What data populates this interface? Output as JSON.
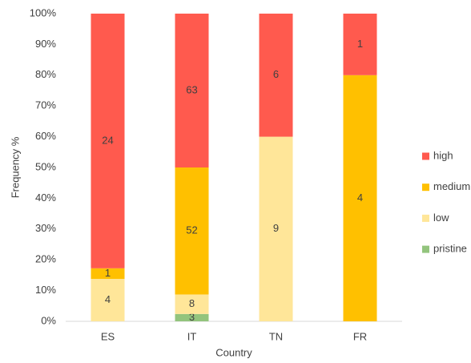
{
  "chart_data": {
    "type": "bar",
    "stacked": "percent",
    "x_label": "Country",
    "y_label": "Frequency %",
    "categories": [
      "ES",
      "IT",
      "TN",
      "FR"
    ],
    "series": [
      {
        "name": "pristine",
        "color": "#93c47d",
        "values": [
          null,
          3,
          null,
          null
        ]
      },
      {
        "name": "low",
        "color": "#ffe699",
        "values": [
          4,
          8,
          9,
          null
        ]
      },
      {
        "name": "medium",
        "color": "#ffc000",
        "values": [
          1,
          52,
          null,
          4
        ]
      },
      {
        "name": "high",
        "color": "#ff5a4e",
        "values": [
          24,
          63,
          6,
          1
        ]
      }
    ],
    "ylim": [
      0,
      100
    ],
    "yticks": [
      {
        "value": 0,
        "label": "0%"
      },
      {
        "value": 10,
        "label": "10%"
      },
      {
        "value": 20,
        "label": "20%"
      },
      {
        "value": 30,
        "label": "30%"
      },
      {
        "value": 40,
        "label": "40%"
      },
      {
        "value": 50,
        "label": "50%"
      },
      {
        "value": 60,
        "label": "60%"
      },
      {
        "value": 70,
        "label": "70%"
      },
      {
        "value": 80,
        "label": "80%"
      },
      {
        "value": 90,
        "label": "90%"
      },
      {
        "value": 100,
        "label": "100%"
      }
    ],
    "legend": "right",
    "grid": false
  }
}
